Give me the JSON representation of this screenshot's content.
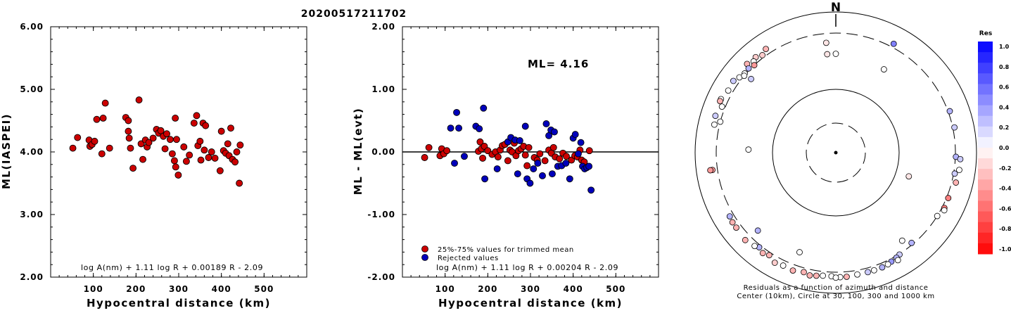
{
  "title": "20200517211702",
  "chart_data": [
    {
      "type": "scatter",
      "xlabel": "Hypocentral distance (km)",
      "ylabel": "ML(IASPEI)",
      "xlim": [
        0,
        600
      ],
      "ylim": [
        2.0,
        6.0
      ],
      "x_ticks": [
        "100",
        "200",
        "300",
        "400",
        "500"
      ],
      "y_ticks": [
        "2.00",
        "3.00",
        "4.00",
        "5.00",
        "6.00"
      ],
      "formula": "log A(nm) + 1.11 log R + 0.00189 R - 2.09",
      "color": "#cc0000",
      "points": [
        [
          52,
          4.06
        ],
        [
          63,
          4.23
        ],
        [
          90,
          4.19
        ],
        [
          92,
          4.09
        ],
        [
          97,
          4.12
        ],
        [
          103,
          4.17
        ],
        [
          108,
          4.52
        ],
        [
          120,
          3.97
        ],
        [
          123,
          4.54
        ],
        [
          128,
          4.78
        ],
        [
          138,
          4.06
        ],
        [
          176,
          4.55
        ],
        [
          182,
          4.33
        ],
        [
          182,
          4.5
        ],
        [
          184,
          4.22
        ],
        [
          187,
          4.06
        ],
        [
          193,
          3.74
        ],
        [
          207,
          4.83
        ],
        [
          212,
          4.13
        ],
        [
          216,
          3.88
        ],
        [
          222,
          4.19
        ],
        [
          226,
          4.08
        ],
        [
          230,
          4.15
        ],
        [
          240,
          4.22
        ],
        [
          248,
          4.36
        ],
        [
          253,
          4.3
        ],
        [
          258,
          4.34
        ],
        [
          264,
          4.25
        ],
        [
          268,
          4.05
        ],
        [
          272,
          4.29
        ],
        [
          280,
          4.2
        ],
        [
          285,
          3.97
        ],
        [
          290,
          3.86
        ],
        [
          292,
          4.54
        ],
        [
          293,
          3.76
        ],
        [
          295,
          4.2
        ],
        [
          299,
          3.63
        ],
        [
          312,
          4.08
        ],
        [
          318,
          3.85
        ],
        [
          325,
          3.95
        ],
        [
          336,
          4.46
        ],
        [
          342,
          4.58
        ],
        [
          345,
          4.1
        ],
        [
          350,
          4.17
        ],
        [
          352,
          3.87
        ],
        [
          357,
          4.46
        ],
        [
          360,
          4.03
        ],
        [
          363,
          4.42
        ],
        [
          370,
          3.91
        ],
        [
          377,
          4.0
        ],
        [
          385,
          3.9
        ],
        [
          397,
          3.7
        ],
        [
          400,
          4.33
        ],
        [
          405,
          4.02
        ],
        [
          410,
          3.98
        ],
        [
          415,
          4.13
        ],
        [
          418,
          3.94
        ],
        [
          422,
          4.38
        ],
        [
          426,
          3.88
        ],
        [
          432,
          3.84
        ],
        [
          436,
          4.0
        ],
        [
          442,
          3.5
        ],
        [
          444,
          4.11
        ]
      ]
    },
    {
      "type": "scatter",
      "xlabel": "Hypocentral distance (km)",
      "ylabel": "ML - ML(evt)",
      "xlim": [
        0,
        600
      ],
      "ylim": [
        -2.0,
        2.0
      ],
      "x_ticks": [
        "100",
        "200",
        "300",
        "400",
        "500"
      ],
      "y_ticks": [
        "-2.00",
        "-1.00",
        "0.00",
        "1.00",
        "2.00"
      ],
      "annotation": "ML= 4.16",
      "formula": "log A(nm) + 1.11 log R + 0.00204 R - 2.09",
      "legend": [
        "25%-75% values for trimmed mean",
        "Rejected values"
      ],
      "legend_placement": "bottom-left",
      "series": [
        {
          "name": "25%-75% values for trimmed mean",
          "color": "#cc0000",
          "points": [
            [
              52,
              -0.09
            ],
            [
              62,
              0.07
            ],
            [
              88,
              -0.06
            ],
            [
              92,
              0.05
            ],
            [
              97,
              -0.03
            ],
            [
              104,
              0.02
            ],
            [
              178,
              0.01
            ],
            [
              182,
              0.16
            ],
            [
              185,
              0.05
            ],
            [
              188,
              -0.1
            ],
            [
              192,
              0.09
            ],
            [
              200,
              0.02
            ],
            [
              210,
              -0.04
            ],
            [
              218,
              0.0
            ],
            [
              224,
              -0.08
            ],
            [
              229,
              0.03
            ],
            [
              234,
              0.1
            ],
            [
              240,
              0.12
            ],
            [
              247,
              -0.14
            ],
            [
              252,
              0.03
            ],
            [
              257,
              0.0
            ],
            [
              262,
              0.14
            ],
            [
              266,
              -0.06
            ],
            [
              272,
              0.02
            ],
            [
              278,
              0.05
            ],
            [
              284,
              0.09
            ],
            [
              288,
              -0.05
            ],
            [
              292,
              -0.22
            ],
            [
              296,
              0.07
            ],
            [
              309,
              -0.09
            ],
            [
              316,
              -0.13
            ],
            [
              322,
              -0.03
            ],
            [
              334,
              -0.14
            ],
            [
              343,
              0.03
            ],
            [
              349,
              -0.02
            ],
            [
              354,
              0.07
            ],
            [
              358,
              -0.08
            ],
            [
              368,
              -0.11
            ],
            [
              376,
              -0.02
            ],
            [
              384,
              -0.07
            ],
            [
              396,
              -0.13
            ],
            [
              404,
              -0.06
            ],
            [
              410,
              -0.08
            ],
            [
              416,
              0.03
            ],
            [
              420,
              -0.13
            ],
            [
              426,
              -0.16
            ],
            [
              438,
              0.02
            ]
          ]
        },
        {
          "name": "Rejected values",
          "color": "#0000bb",
          "points": [
            [
              113,
              0.38
            ],
            [
              122,
              -0.18
            ],
            [
              127,
              0.63
            ],
            [
              132,
              0.38
            ],
            [
              145,
              -0.07
            ],
            [
              172,
              0.41
            ],
            [
              180,
              0.37
            ],
            [
              190,
              0.7
            ],
            [
              193,
              -0.43
            ],
            [
              222,
              -0.27
            ],
            [
              247,
              0.16
            ],
            [
              254,
              0.23
            ],
            [
              264,
              0.19
            ],
            [
              270,
              -0.35
            ],
            [
              275,
              0.18
            ],
            [
              288,
              0.41
            ],
            [
              292,
              -0.43
            ],
            [
              299,
              -0.5
            ],
            [
              307,
              -0.27
            ],
            [
              317,
              -0.18
            ],
            [
              328,
              -0.38
            ],
            [
              337,
              0.45
            ],
            [
              343,
              0.26
            ],
            [
              348,
              0.35
            ],
            [
              351,
              -0.35
            ],
            [
              356,
              0.32
            ],
            [
              364,
              -0.23
            ],
            [
              373,
              -0.22
            ],
            [
              383,
              -0.18
            ],
            [
              392,
              -0.43
            ],
            [
              400,
              0.22
            ],
            [
              405,
              0.28
            ],
            [
              412,
              -0.03
            ],
            [
              418,
              0.15
            ],
            [
              422,
              -0.23
            ],
            [
              427,
              -0.27
            ],
            [
              432,
              -0.25
            ],
            [
              437,
              -0.23
            ],
            [
              442,
              -0.61
            ]
          ]
        }
      ]
    },
    {
      "type": "polar_scatter",
      "north_label": "N",
      "caption_line1": "Residuals as a function of azimuth and distance",
      "caption_line2": "Center (10km), Circle at 30, 100, 300 and 1000 km",
      "colorbar_title": "Res",
      "colorbar_ticks": [
        "1.0",
        "0.8",
        "0.6",
        "0.4",
        "0.2",
        "0.0",
        "-0.2",
        "-0.4",
        "-0.6",
        "-0.8",
        "-1.0"
      ],
      "rings_km": [
        30,
        100,
        300,
        1000
      ],
      "points": [
        {
          "az": -34,
          "dist": 410,
          "res": -0.3
        },
        {
          "az": -37,
          "dist": 345,
          "res": -0.2
        },
        {
          "az": -40,
          "dist": 400,
          "res": -0.2
        },
        {
          "az": -42,
          "dist": 360,
          "res": 0.0
        },
        {
          "az": -45,
          "dist": 420,
          "res": -0.3
        },
        {
          "az": -43,
          "dist": 300,
          "res": -0.4
        },
        {
          "az": -46,
          "dist": 330,
          "res": 0.3
        },
        {
          "az": -49,
          "dist": 320,
          "res": 0.0
        },
        {
          "az": -52,
          "dist": 350,
          "res": 0.0
        },
        {
          "az": -50,
          "dist": 300,
          "res": 0.0
        },
        {
          "az": -49,
          "dist": 260,
          "res": 0.2
        },
        {
          "az": -55,
          "dist": 410,
          "res": 0.2
        },
        {
          "az": -60,
          "dist": 390,
          "res": 0.0
        },
        {
          "az": -65,
          "dist": 450,
          "res": 0.0
        },
        {
          "az": -68,
          "dist": 360,
          "res": 0.0
        },
        {
          "az": -66,
          "dist": 450,
          "res": -0.3
        },
        {
          "az": -73,
          "dist": 430,
          "res": 0.2
        },
        {
          "az": -77,
          "dist": 400,
          "res": 0.0
        },
        {
          "az": -75,
          "dist": 300,
          "res": 0.0
        },
        {
          "az": -98,
          "dist": 400,
          "res": -0.4
        },
        {
          "az": -98,
          "dist": 450,
          "res": -0.4
        },
        {
          "az": -88,
          "dist": 160,
          "res": 0.0
        },
        {
          "az": 0,
          "dist": 200,
          "res": 0.0
        },
        {
          "az": -5,
          "dist": 200,
          "res": -0.1
        },
        {
          "az": -5,
          "dist": 250,
          "res": -0.1
        },
        {
          "az": 28,
          "dist": 370,
          "res": 0.5
        },
        {
          "az": 30,
          "dist": 190,
          "res": 0.0
        },
        {
          "az": 108,
          "dist": 130,
          "res": -0.1
        },
        {
          "az": 70,
          "dist": 330,
          "res": 0.3
        },
        {
          "az": 78,
          "dist": 330,
          "res": 0.2
        },
        {
          "az": 100,
          "dist": 320,
          "res": 0.2
        },
        {
          "az": 92,
          "dist": 310,
          "res": 0.3
        },
        {
          "az": 93,
          "dist": 400,
          "res": 0.2
        },
        {
          "az": 98,
          "dist": 400,
          "res": 0.0
        },
        {
          "az": 104,
          "dist": 380,
          "res": -0.3
        },
        {
          "az": 112,
          "dist": 330,
          "res": -0.5
        },
        {
          "az": 117,
          "dist": 340,
          "res": -0.5
        },
        {
          "az": 118,
          "dist": 360,
          "res": 0.0
        },
        {
          "az": 122,
          "dist": 300,
          "res": 0.0
        },
        {
          "az": 140,
          "dist": 290,
          "res": 0.3
        },
        {
          "az": 143,
          "dist": 250,
          "res": 0.0
        },
        {
          "az": 148,
          "dist": 310,
          "res": 0.2
        },
        {
          "az": 150,
          "dist": 330,
          "res": 0.3
        },
        {
          "az": 153,
          "dist": 350,
          "res": 0.4
        },
        {
          "az": 150,
          "dist": 390,
          "res": 0.0
        },
        {
          "az": 155,
          "dist": 370,
          "res": 0.0
        },
        {
          "az": 158,
          "dist": 380,
          "res": 0.3
        },
        {
          "az": 162,
          "dist": 380,
          "res": 0.0
        },
        {
          "az": 165,
          "dist": 380,
          "res": 0.2
        },
        {
          "az": 170,
          "dist": 380,
          "res": 0.0
        },
        {
          "az": 175,
          "dist": 400,
          "res": -0.3
        },
        {
          "az": 178,
          "dist": 400,
          "res": 0.0
        },
        {
          "az": 182,
          "dist": 380,
          "res": 0.0
        },
        {
          "az": 180,
          "dist": 410,
          "res": 0.0
        },
        {
          "az": 186,
          "dist": 380,
          "res": 0.0
        },
        {
          "az": 189,
          "dist": 400,
          "res": -0.3
        },
        {
          "az": 192,
          "dist": 420,
          "res": -0.3
        },
        {
          "az": 195,
          "dist": 380,
          "res": -0.3
        },
        {
          "az": 200,
          "dist": 420,
          "res": -0.3
        },
        {
          "az": 205,
          "dist": 400,
          "res": 0.0
        },
        {
          "az": 209,
          "dist": 430,
          "res": -0.2
        },
        {
          "az": 213,
          "dist": 350,
          "res": -0.3
        },
        {
          "az": 216,
          "dist": 390,
          "res": -0.3
        },
        {
          "az": 219,
          "dist": 340,
          "res": 0.3
        },
        {
          "az": 221,
          "dist": 380,
          "res": 0.0
        },
        {
          "az": 226,
          "dist": 430,
          "res": -0.3
        },
        {
          "az": 225,
          "dist": 250,
          "res": 0.3
        },
        {
          "az": 200,
          "dist": 230,
          "res": 0.0
        },
        {
          "az": 233,
          "dist": 400,
          "res": -0.3
        },
        {
          "az": 236,
          "dist": 400,
          "res": -0.3
        },
        {
          "az": 239,
          "dist": 380,
          "res": 0.3
        }
      ]
    }
  ]
}
